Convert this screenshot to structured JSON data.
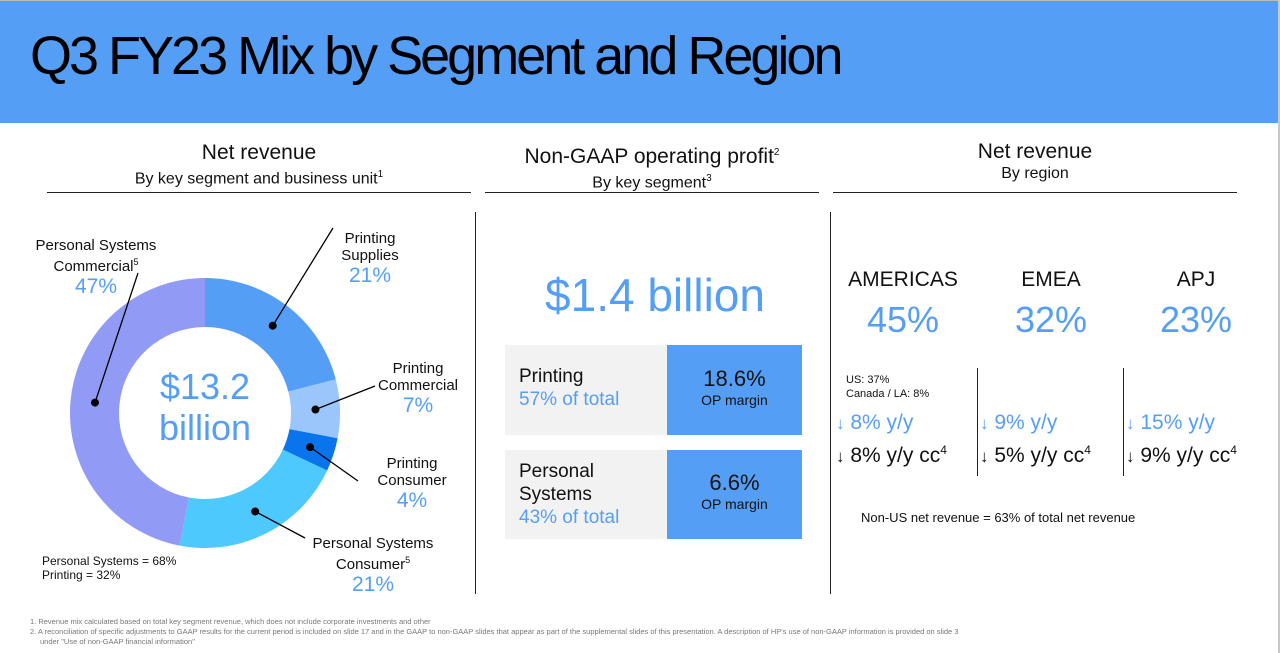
{
  "title": "Q3 FY23 Mix by Segment and Region",
  "sections": {
    "revenue_segment": {
      "title": "Net revenue",
      "subtitle": "By key segment and business unit",
      "sup": "1"
    },
    "op_profit": {
      "title": "Non-GAAP operating profit",
      "title_sup": "2",
      "subtitle": "By key segment",
      "subtitle_sup": "3"
    },
    "revenue_region": {
      "title": "Net revenue",
      "subtitle": "By region"
    }
  },
  "chart_data": {
    "type": "pie",
    "donut": true,
    "title": "Net revenue by key segment and business unit",
    "center_label": [
      "$13.2",
      "billion"
    ],
    "total": "$13.2 billion",
    "start_angle": "top, clockwise",
    "slices": [
      {
        "label": "Printing Supplies",
        "value": 21,
        "color": "#559ef6"
      },
      {
        "label": "Printing Commercial",
        "value": 7,
        "color": "#9bc6fb"
      },
      {
        "label": "Printing Consumer",
        "value": 4,
        "color": "#0a74ec"
      },
      {
        "label": "Personal Systems Consumer",
        "value": 21,
        "color": "#4dc9fd",
        "sup": "5"
      },
      {
        "label": "Personal Systems Commercial",
        "value": 47,
        "color": "#919bf6",
        "sup": "5"
      }
    ],
    "annotations": [
      "Personal Systems = 68%",
      "Printing = 32%"
    ]
  },
  "labels": {
    "ps_commercial": {
      "line1": "Personal Systems",
      "line2": "Commercial",
      "sup": "5",
      "pct": "47%"
    },
    "pr_supplies": {
      "line1": "Printing",
      "line2": "Supplies",
      "pct": "21%"
    },
    "pr_commercial": {
      "line1": "Printing",
      "line2": "Commercial",
      "pct": "7%"
    },
    "pr_consumer": {
      "line1": "Printing",
      "line2": "Consumer",
      "pct": "4%"
    },
    "ps_consumer": {
      "line1": "Personal Systems",
      "line2": "Consumer",
      "sup": "5",
      "pct": "21%"
    }
  },
  "center": {
    "line1": "$13.2",
    "line2": "billion"
  },
  "mix_note": {
    "ps": "Personal Systems = 68%",
    "printing": "Printing = 32%"
  },
  "op": {
    "total": "$1.4 billion",
    "segments": [
      {
        "name": "Printing",
        "share": "57% of total",
        "margin": "18.6%",
        "margin_label": "OP margin"
      },
      {
        "name_line1": "Personal",
        "name_line2": "Systems",
        "share": "43% of total",
        "margin": "6.6%",
        "margin_label": "OP margin"
      }
    ]
  },
  "regions": [
    {
      "name": "AMERICAS",
      "pct": "45%",
      "yy": "8% y/y",
      "yycc": "8% y/y cc",
      "sup": "4"
    },
    {
      "name": "EMEA",
      "pct": "32%",
      "yy": "9% y/y",
      "yycc": "5% y/y cc",
      "sup": "4"
    },
    {
      "name": "APJ",
      "pct": "23%",
      "yy": "15% y/y",
      "yycc": "9% y/y cc",
      "sup": "4"
    }
  ],
  "americas_breakdown": {
    "us": "US: 37%",
    "canada_la": "Canada / LA: 8%"
  },
  "arrow_down": "↓",
  "non_us": "Non-US net revenue = 63% of total net revenue",
  "footnotes": [
    "1.  Revenue mix calculated based on total key segment revenue, which does not include corporate investments and other",
    "2.  A reconciliation of specific adjustments to GAAP results for the current period is included on slide 17 and in the GAAP to non-GAAP slides that appear as part of the supplemental slides of this presentation. A description of HP's use of non-GAAP information is provided on slide 3",
    "     under \"Use of non-GAAP financial information\""
  ]
}
